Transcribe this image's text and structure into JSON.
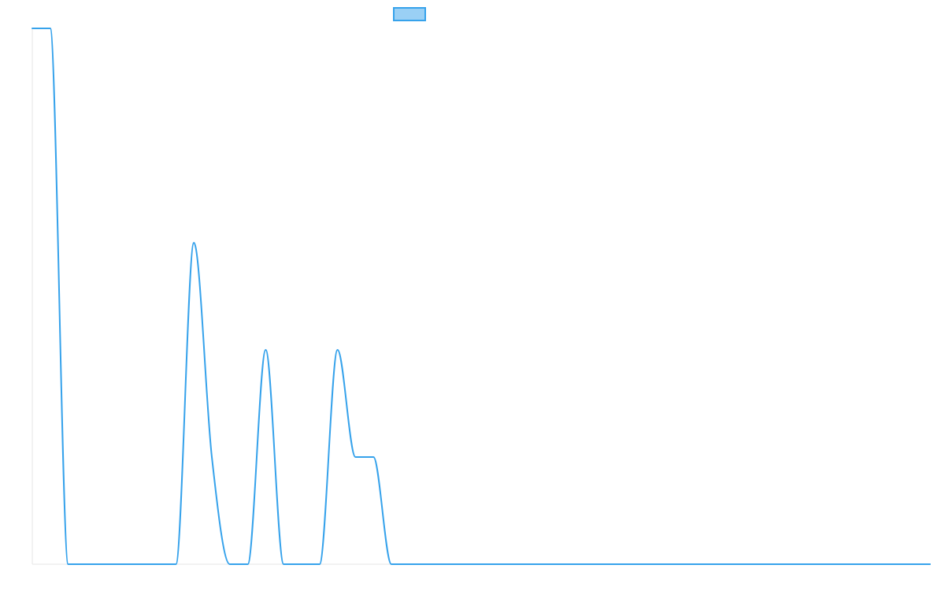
{
  "chart_data": {
    "type": "line",
    "title": "",
    "xlabel": "",
    "ylabel": "",
    "grid": false,
    "legend_position": "top-center",
    "x": [
      0,
      1,
      2,
      3,
      4,
      5,
      6,
      7,
      8,
      9,
      10,
      11,
      12,
      13,
      14,
      15,
      16,
      17,
      18,
      19,
      20,
      21,
      22,
      23,
      24,
      25,
      26,
      27,
      28,
      29,
      30,
      31,
      32,
      33,
      34,
      35,
      36,
      37,
      38,
      39,
      40,
      41,
      42,
      43,
      44,
      45,
      46,
      47,
      48,
      49,
      50
    ],
    "xlim": [
      0,
      50
    ],
    "ylim": [
      0,
      5
    ],
    "series": [
      {
        "name": "",
        "color": "#36a2eb",
        "fill": "#9ad0f5",
        "values": [
          5,
          5,
          0,
          0,
          0,
          0,
          0,
          0,
          0,
          3,
          1,
          0,
          0,
          2,
          0,
          0,
          0,
          2,
          1,
          1,
          0,
          0,
          0,
          0,
          0,
          0,
          0,
          0,
          0,
          0,
          0,
          0,
          0,
          0,
          0,
          0,
          0,
          0,
          0,
          0,
          0,
          0,
          0,
          0,
          0,
          0,
          0,
          0,
          0,
          0,
          0
        ]
      }
    ]
  }
}
